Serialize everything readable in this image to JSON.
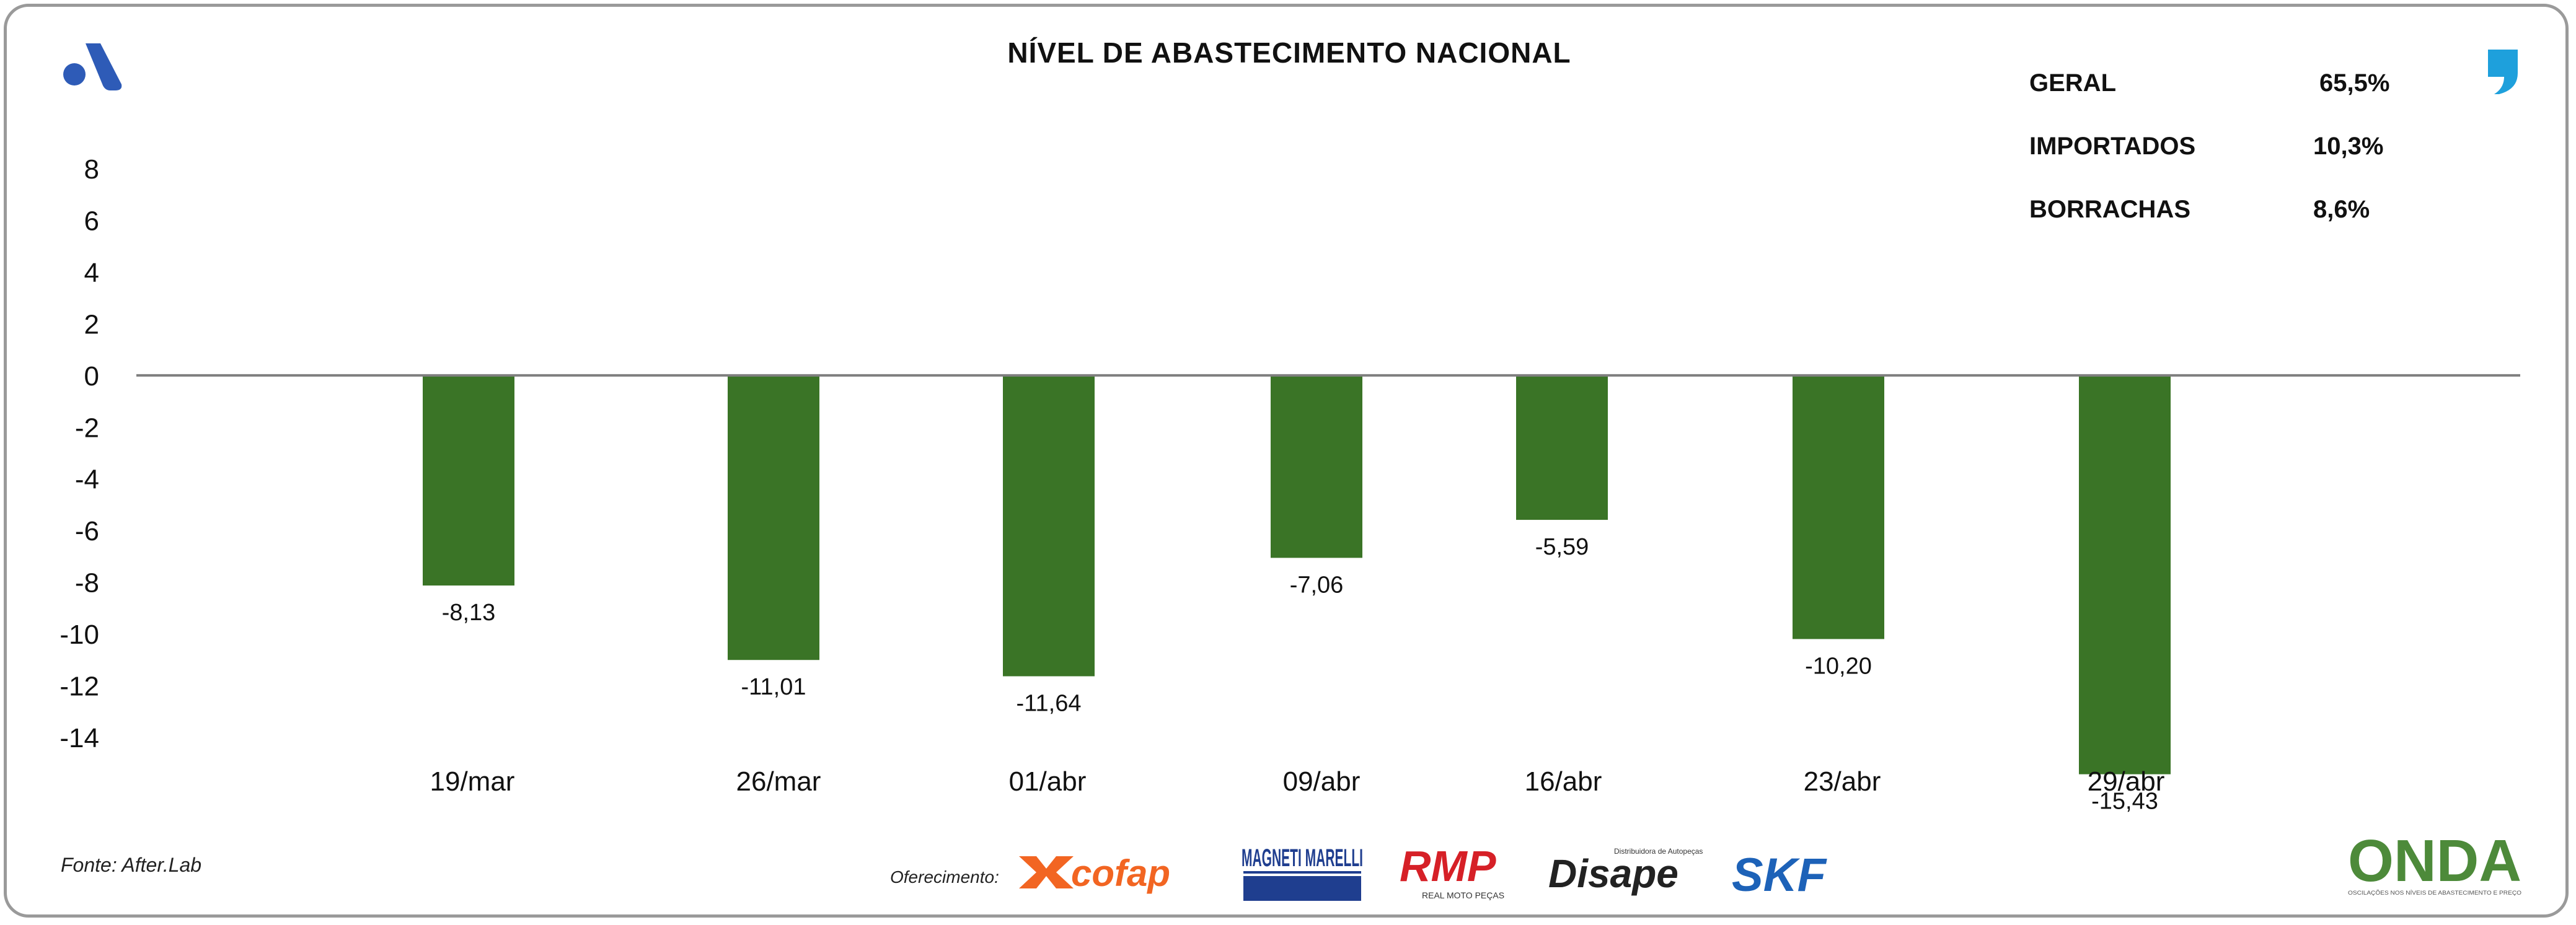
{
  "title": "NÍVEL DE ABASTECIMENTO NACIONAL",
  "stats": [
    {
      "label": "GERAL",
      "value": "65,5%"
    },
    {
      "label": "IMPORTADOS",
      "value": "10,3%"
    },
    {
      "label": "BORRACHAS",
      "value": "8,6%"
    }
  ],
  "source": "Fonte: After.Lab",
  "offer_label": "Oferecimento:",
  "sponsors": [
    "cofap",
    "MAGNETI MARELLI",
    "RMP",
    "REAL MOTO PEÇAS",
    "Disape",
    "Distribuidora de Autopeças",
    "SKF"
  ],
  "brand_logo": "ONDA",
  "brand_tagline": "OSCILAÇÕES NOS NÍVEIS DE ABASTECIMENTO E PREÇO",
  "colors": {
    "bar": "#3a7426",
    "axis": "#7f7f7f",
    "text": "#111111",
    "onda_green": "#4d8a3a",
    "onda_blue": "#2f6fb5",
    "cofap": "#f26522",
    "magneti": "#1f3e8f",
    "rmp": "#d62027",
    "skf": "#1d62b8",
    "brand_blue": "#2e5bb7",
    "quote_blue": "#1ea0dc"
  },
  "icons": {
    "top_left": "brand-a-logo-icon",
    "top_right": "quote-mark-icon"
  },
  "chart_data": {
    "type": "bar",
    "categories": [
      "19/mar",
      "26/mar",
      "01/abr",
      "09/abr",
      "16/abr",
      "23/abr",
      "29/abr"
    ],
    "values": [
      -8.13,
      -11.01,
      -11.64,
      -7.06,
      -5.59,
      -10.2,
      -15.43
    ],
    "data_labels": [
      "-8,13",
      "-11,01",
      "-11,64",
      "-7,06",
      "-5,59",
      "-10,20",
      "-15,43"
    ],
    "title": "NÍVEL DE ABASTECIMENTO NACIONAL",
    "xlabel": "",
    "ylabel": "",
    "ylim": [
      -14,
      8
    ],
    "yticks": [
      8,
      6,
      4,
      2,
      0,
      -2,
      -4,
      -6,
      -8,
      -10,
      -12,
      -14
    ],
    "ytick_labels": [
      "8",
      "6",
      "4",
      "2",
      "0",
      "-2",
      "-4",
      "-6",
      "-8",
      "-10",
      "-12",
      "-14"
    ],
    "grid": false,
    "legend": "none"
  }
}
